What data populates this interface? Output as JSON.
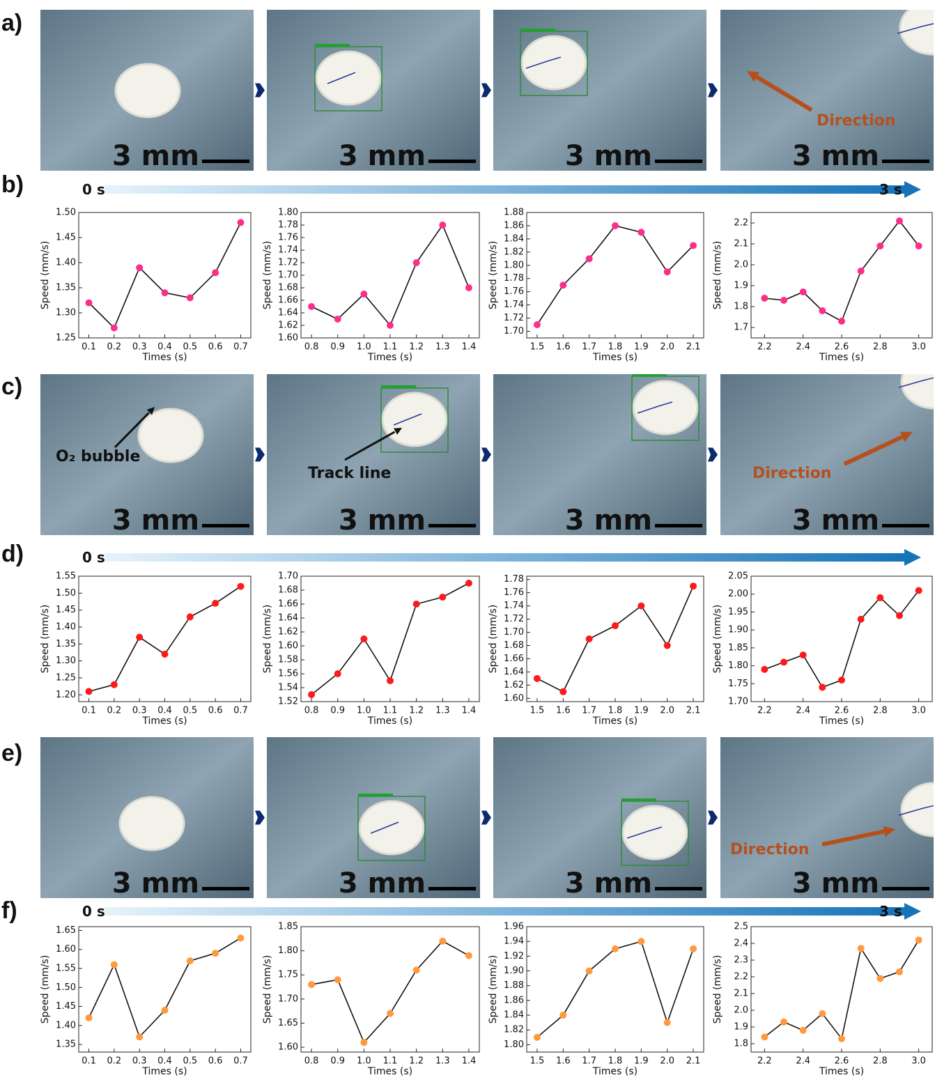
{
  "panel_labels": [
    "a)",
    "b)",
    "c)",
    "d)",
    "e)",
    "f)"
  ],
  "photo_rows": [
    {
      "photos": [
        {
          "scale": "3 mm"
        },
        {
          "scale": "3 mm"
        },
        {
          "scale": "3 mm"
        },
        {
          "scale": "3 mm",
          "annotation": "Direction"
        }
      ]
    },
    {
      "photos": [
        {
          "scale": "3 mm",
          "annotation": "O₂ bubble"
        },
        {
          "scale": "3 mm",
          "annotation": "Track line"
        },
        {
          "scale": "3 mm"
        },
        {
          "scale": "3 mm",
          "annotation": "Direction"
        }
      ]
    },
    {
      "photos": [
        {
          "scale": "3 mm"
        },
        {
          "scale": "3 mm"
        },
        {
          "scale": "3 mm"
        },
        {
          "scale": "3 mm",
          "annotation": "Direction"
        }
      ]
    }
  ],
  "timelines": [
    {
      "start": "0 s",
      "end": "3 s"
    },
    {
      "start": "0 s"
    },
    {
      "start": "0 s",
      "end": "3 s"
    }
  ],
  "chart_data": [
    {
      "type": "line",
      "x_label": "Times (s)",
      "y_label": "Speed (mm/s)",
      "color": "#ff2d8a",
      "x": [
        0.1,
        0.2,
        0.3,
        0.4,
        0.5,
        0.6,
        0.7
      ],
      "values": [
        1.32,
        1.27,
        1.39,
        1.34,
        1.33,
        1.38,
        1.48
      ],
      "xlim": [
        0.06,
        0.74
      ],
      "ylim": [
        1.25,
        1.5
      ],
      "xticks": [
        0.1,
        0.2,
        0.3,
        0.4,
        0.5,
        0.6,
        0.7
      ],
      "yticks": [
        1.25,
        {
          "value": 1.3,
          "label": "1.30"
        },
        1.35,
        {
          "value": 1.4,
          "label": "1.40"
        },
        1.45,
        {
          "value": 1.5,
          "label": "1.50"
        }
      ]
    },
    {
      "type": "line",
      "x_label": "Times (s)",
      "y_label": "Speed (mm/s)",
      "color": "#ff2d8a",
      "x": [
        0.8,
        0.9,
        1,
        1.1,
        1.2,
        1.3,
        1.4
      ],
      "values": [
        1.65,
        1.63,
        1.67,
        1.62,
        1.72,
        1.78,
        1.68
      ],
      "xlim": [
        0.76,
        1.44
      ],
      "ylim": [
        1.6,
        1.8
      ],
      "xticks": [
        0.8,
        0.9,
        {
          "value": 1,
          "label": "1.0"
        },
        1.1,
        1.2,
        1.3,
        1.4
      ],
      "yticks": [
        {
          "value": 1.6,
          "label": "1.60"
        },
        1.62,
        1.64,
        1.66,
        1.68,
        {
          "value": 1.7,
          "label": "1.70"
        },
        1.72,
        1.74,
        1.76,
        1.78,
        {
          "value": 1.8,
          "label": "1.80"
        }
      ]
    },
    {
      "type": "line",
      "x_label": "Times (s)",
      "y_label": "Speed (mm/s)",
      "color": "#ff2d8a",
      "x": [
        1.5,
        1.6,
        1.7,
        1.8,
        1.9,
        2,
        2.1
      ],
      "values": [
        1.71,
        1.77,
        1.81,
        1.86,
        1.85,
        1.79,
        1.83
      ],
      "xlim": [
        1.46,
        2.14
      ],
      "ylim": [
        1.69,
        1.88
      ],
      "xticks": [
        1.5,
        1.6,
        1.7,
        1.8,
        1.9,
        {
          "value": 2,
          "label": "2.0"
        },
        2.1
      ],
      "yticks": [
        {
          "value": 1.7,
          "label": "1.70"
        },
        1.72,
        1.74,
        1.76,
        1.78,
        {
          "value": 1.8,
          "label": "1.80"
        },
        1.82,
        1.84,
        1.86,
        1.88
      ]
    },
    {
      "type": "line",
      "x_label": "Times (s)",
      "y_label": "Speed (mm/s)",
      "color": "#ff2d8a",
      "x": [
        2.2,
        2.3,
        2.4,
        2.5,
        2.6,
        2.7,
        2.8,
        2.9,
        3
      ],
      "values": [
        1.84,
        1.83,
        1.87,
        1.78,
        1.73,
        1.97,
        2.09,
        2.21,
        2.09
      ],
      "xlim": [
        2.13,
        3.07
      ],
      "ylim": [
        1.65,
        2.25
      ],
      "xticks": [
        2.2,
        2.4,
        2.6,
        2.8,
        {
          "value": 3,
          "label": "3.0"
        }
      ],
      "yticks": [
        1.7,
        1.8,
        1.9,
        {
          "value": 2,
          "label": "2.0"
        },
        2.1,
        2.2
      ]
    },
    {
      "type": "line",
      "x_label": "Times (s)",
      "y_label": "Speed (mm/s)",
      "color": "#ff1a1a",
      "x": [
        0.1,
        0.2,
        0.3,
        0.4,
        0.5,
        0.6,
        0.7
      ],
      "values": [
        1.21,
        1.23,
        1.37,
        1.32,
        1.43,
        1.47,
        1.52
      ],
      "xlim": [
        0.06,
        0.74
      ],
      "ylim": [
        1.18,
        1.55
      ],
      "xticks": [
        0.1,
        0.2,
        0.3,
        0.4,
        0.5,
        0.6,
        0.7
      ],
      "yticks": [
        {
          "value": 1.2,
          "label": "1.20"
        },
        1.25,
        {
          "value": 1.3,
          "label": "1.30"
        },
        1.35,
        {
          "value": 1.4,
          "label": "1.40"
        },
        1.45,
        {
          "value": 1.5,
          "label": "1.50"
        },
        1.55
      ]
    },
    {
      "type": "line",
      "x_label": "Times (s)",
      "y_label": "Speed (mm/s)",
      "color": "#ff1a1a",
      "x": [
        0.8,
        0.9,
        1,
        1.1,
        1.2,
        1.3,
        1.4
      ],
      "values": [
        1.53,
        1.56,
        1.61,
        1.55,
        1.66,
        1.67,
        1.69
      ],
      "xlim": [
        0.76,
        1.44
      ],
      "ylim": [
        1.52,
        1.7
      ],
      "xticks": [
        0.8,
        0.9,
        {
          "value": 1,
          "label": "1.0"
        },
        1.1,
        1.2,
        1.3,
        1.4
      ],
      "yticks": [
        1.52,
        1.54,
        1.56,
        1.58,
        {
          "value": 1.6,
          "label": "1.60"
        },
        1.62,
        1.64,
        1.66,
        1.68,
        {
          "value": 1.7,
          "label": "1.70"
        }
      ]
    },
    {
      "type": "line",
      "x_label": "Times (s)",
      "y_label": "Speed (mm/s)",
      "color": "#ff1a1a",
      "x": [
        1.5,
        1.6,
        1.7,
        1.8,
        1.9,
        2,
        2.1
      ],
      "values": [
        1.63,
        1.61,
        1.69,
        1.71,
        1.74,
        1.68,
        1.77
      ],
      "xlim": [
        1.46,
        2.14
      ],
      "ylim": [
        1.595,
        1.785
      ],
      "xticks": [
        1.5,
        1.6,
        1.7,
        1.8,
        1.9,
        {
          "value": 2,
          "label": "2.0"
        },
        2.1
      ],
      "yticks": [
        {
          "value": 1.6,
          "label": "1.60"
        },
        1.62,
        1.64,
        1.66,
        1.68,
        {
          "value": 1.7,
          "label": "1.70"
        },
        1.72,
        1.74,
        1.76,
        1.78
      ]
    },
    {
      "type": "line",
      "x_label": "Times (s)",
      "y_label": "Speed (mm/s)",
      "color": "#ff1a1a",
      "x": [
        2.2,
        2.3,
        2.4,
        2.5,
        2.6,
        2.7,
        2.8,
        2.9,
        3
      ],
      "values": [
        1.79,
        1.81,
        1.83,
        1.74,
        1.76,
        1.93,
        1.99,
        1.94,
        2.01
      ],
      "xlim": [
        2.13,
        3.07
      ],
      "ylim": [
        1.7,
        2.05
      ],
      "xticks": [
        2.2,
        2.4,
        2.6,
        2.8,
        {
          "value": 3,
          "label": "3.0"
        }
      ],
      "yticks": [
        {
          "value": 1.7,
          "label": "1.70"
        },
        1.75,
        {
          "value": 1.8,
          "label": "1.80"
        },
        1.85,
        {
          "value": 1.9,
          "label": "1.90"
        },
        1.95,
        {
          "value": 2,
          "label": "2.00"
        },
        2.05
      ]
    },
    {
      "type": "line",
      "x_label": "Times (s)",
      "y_label": "Speed (mm/s)",
      "color": "#ff9a3c",
      "x": [
        0.1,
        0.2,
        0.3,
        0.4,
        0.5,
        0.6,
        0.7
      ],
      "values": [
        1.42,
        1.56,
        1.37,
        1.44,
        1.57,
        1.59,
        1.63
      ],
      "xlim": [
        0.06,
        0.74
      ],
      "ylim": [
        1.33,
        1.66
      ],
      "xticks": [
        0.1,
        0.2,
        0.3,
        0.4,
        0.5,
        0.6,
        0.7
      ],
      "yticks": [
        1.35,
        {
          "value": 1.4,
          "label": "1.40"
        },
        1.45,
        {
          "value": 1.5,
          "label": "1.50"
        },
        1.55,
        {
          "value": 1.6,
          "label": "1.60"
        },
        1.65
      ]
    },
    {
      "type": "line",
      "x_label": "Times (s)",
      "y_label": "Speed (mm/s)",
      "color": "#ff9a3c",
      "x": [
        0.8,
        0.9,
        1,
        1.1,
        1.2,
        1.3,
        1.4
      ],
      "values": [
        1.73,
        1.74,
        1.61,
        1.67,
        1.76,
        1.82,
        1.79
      ],
      "xlim": [
        0.76,
        1.44
      ],
      "ylim": [
        1.59,
        1.85
      ],
      "xticks": [
        0.8,
        0.9,
        {
          "value": 1,
          "label": "1.0"
        },
        1.1,
        1.2,
        1.3,
        1.4
      ],
      "yticks": [
        {
          "value": 1.6,
          "label": "1.60"
        },
        1.65,
        {
          "value": 1.7,
          "label": "1.70"
        },
        1.75,
        {
          "value": 1.8,
          "label": "1.80"
        },
        1.85
      ]
    },
    {
      "type": "line",
      "x_label": "Times (s)",
      "y_label": "Speed (mm/s)",
      "color": "#ff9a3c",
      "x": [
        1.5,
        1.6,
        1.7,
        1.8,
        1.9,
        2,
        2.1
      ],
      "values": [
        1.81,
        1.84,
        1.9,
        1.93,
        1.94,
        1.83,
        1.93
      ],
      "xlim": [
        1.46,
        2.14
      ],
      "ylim": [
        1.79,
        1.96
      ],
      "xticks": [
        1.5,
        1.6,
        1.7,
        1.8,
        1.9,
        {
          "value": 2,
          "label": "2.0"
        },
        2.1
      ],
      "yticks": [
        {
          "value": 1.8,
          "label": "1.80"
        },
        1.82,
        1.84,
        1.86,
        1.88,
        {
          "value": 1.9,
          "label": "1.90"
        },
        1.92,
        1.94,
        1.96
      ]
    },
    {
      "type": "line",
      "x_label": "Times (s)",
      "y_label": "Speed (mm/s)",
      "color": "#ff9a3c",
      "x": [
        2.2,
        2.3,
        2.4,
        2.5,
        2.6,
        2.7,
        2.8,
        2.9,
        3
      ],
      "values": [
        1.84,
        1.93,
        1.88,
        1.98,
        1.83,
        2.37,
        2.19,
        2.23,
        2.42
      ],
      "xlim": [
        2.13,
        3.07
      ],
      "ylim": [
        1.75,
        2.5
      ],
      "xticks": [
        2.2,
        2.4,
        2.6,
        2.8,
        {
          "value": 3,
          "label": "3.0"
        }
      ],
      "yticks": [
        1.8,
        1.9,
        {
          "value": 2,
          "label": "2.0"
        },
        2.1,
        2.2,
        2.3,
        2.4,
        2.5
      ]
    }
  ]
}
